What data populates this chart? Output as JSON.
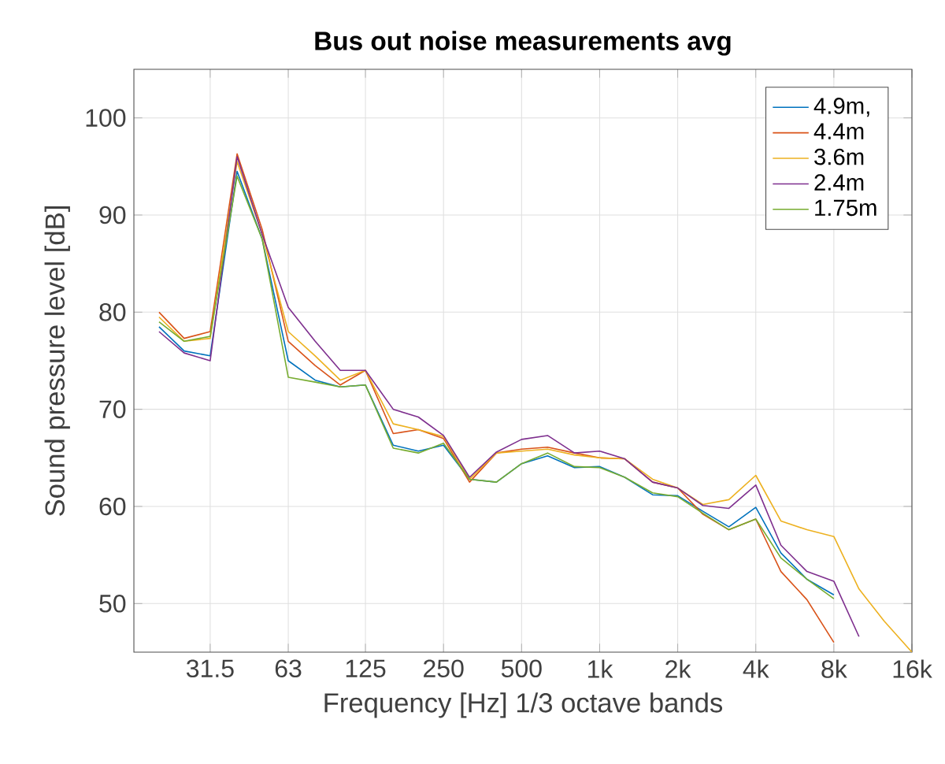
{
  "chart_data": {
    "type": "line",
    "title": "Bus out noise measurements avg",
    "xlabel": "Frequency [Hz] 1/3 octave bands",
    "ylabel": "Sound pressure level [dB]",
    "log": "x",
    "grid": true,
    "legend": "top right",
    "marker": "none",
    "line_style": "solid",
    "x": [
      20,
      25,
      31.5,
      40,
      50,
      63,
      80,
      100,
      125,
      160,
      200,
      250,
      315,
      400,
      500,
      630,
      800,
      1000,
      1250,
      1600,
      2000,
      2500,
      3150,
      4000,
      5000,
      6300,
      8000,
      10000,
      12500,
      16000
    ],
    "xlim": [
      16,
      16000
    ],
    "xticks": [
      31.5,
      63,
      125,
      250,
      500,
      {
        "value": 1000,
        "label": "1k"
      },
      {
        "value": 2000,
        "label": "2k"
      },
      {
        "value": 4000,
        "label": "4k"
      },
      {
        "value": 8000,
        "label": "8k"
      },
      {
        "value": 16000,
        "label": "16k"
      }
    ],
    "ylim": [
      45,
      105
    ],
    "yticks": [
      50,
      60,
      70,
      80,
      90,
      100
    ],
    "series": [
      {
        "name": "4.9m,",
        "color": "#0072bd",
        "values": [
          78.5,
          76,
          75.5,
          94.5,
          87.5,
          75,
          73,
          72.3,
          72.5,
          66.3,
          65.7,
          66.3,
          62.8,
          62.5,
          64.4,
          65.2,
          64,
          64.1,
          63,
          61.2,
          61.1,
          59.5,
          57.9,
          59.9,
          55.2,
          52.5,
          50.9,
          null,
          null,
          null
        ]
      },
      {
        "name": "4.4m",
        "color": "#d95319",
        "values": [
          80,
          77.3,
          78,
          96.3,
          88.5,
          77,
          74.5,
          72.5,
          74,
          67.5,
          67.9,
          67,
          62.5,
          65.5,
          65.9,
          66.1,
          65.5,
          65,
          64.9,
          62.5,
          61.9,
          59.2,
          57.6,
          58.7,
          53.3,
          50.4,
          46,
          null,
          null,
          null
        ]
      },
      {
        "name": "3.6m",
        "color": "#edb120",
        "values": [
          79.5,
          77,
          77.3,
          95.5,
          88,
          78,
          75.5,
          73,
          74,
          68.5,
          67.9,
          67.2,
          62.8,
          65.5,
          65.7,
          65.9,
          65.3,
          65,
          64.9,
          62.8,
          61.9,
          60.2,
          60.7,
          63.2,
          58.5,
          57.6,
          56.9,
          51.5,
          48.2,
          45
        ]
      },
      {
        "name": "2.4m",
        "color": "#7e2f8e",
        "values": [
          78,
          75.8,
          75,
          96,
          88,
          80.5,
          77,
          74,
          74,
          70,
          69.2,
          67.3,
          63,
          65.6,
          66.9,
          67.3,
          65.5,
          65.7,
          64.9,
          62.5,
          61.9,
          60.1,
          59.8,
          62.2,
          56,
          53.3,
          52.3,
          46.6,
          null,
          null
        ]
      },
      {
        "name": "1.75m",
        "color": "#77ac30",
        "values": [
          79,
          77,
          77.5,
          94,
          87.5,
          73.3,
          72.8,
          72.3,
          72.5,
          66,
          65.5,
          66.5,
          62.8,
          62.5,
          64.4,
          65.5,
          64.1,
          64,
          63,
          61.4,
          61,
          59.3,
          57.6,
          58.7,
          54.7,
          52.5,
          50.5,
          null,
          null,
          null
        ]
      }
    ]
  }
}
